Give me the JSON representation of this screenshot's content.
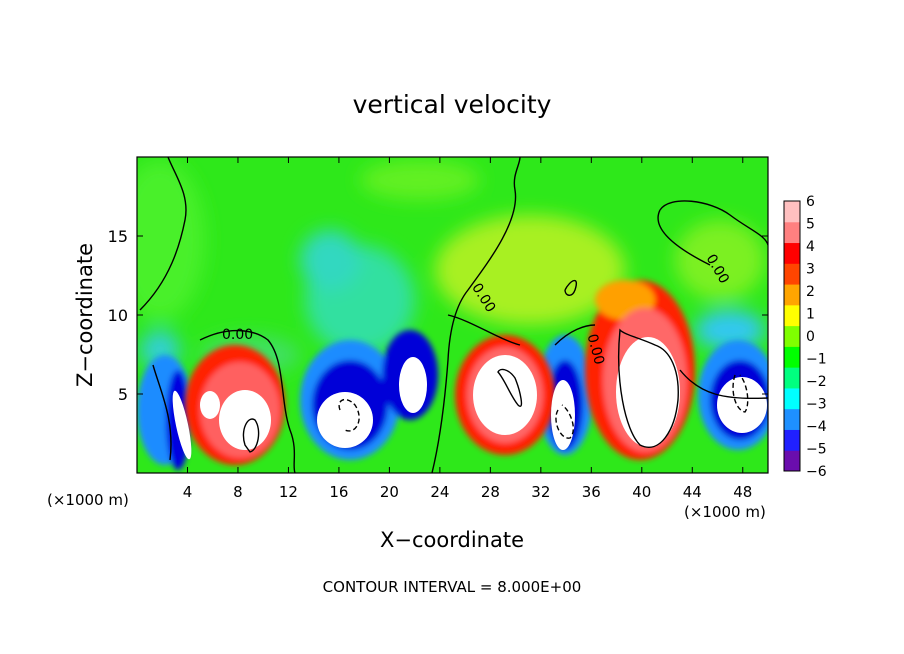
{
  "chart_data": {
    "type": "heatmap",
    "title": "vertical velocity",
    "xlabel": "X−coordinate",
    "ylabel": "Z−coordinate",
    "x_unit_label_left": "(×1000 m)",
    "x_unit_label_right": "(×1000 m)",
    "footer": "CONTOUR INTERVAL = 8.000E+00",
    "xlim": [
      0,
      50
    ],
    "ylim": [
      0,
      20
    ],
    "x_ticks": [
      4,
      8,
      12,
      16,
      20,
      24,
      28,
      32,
      36,
      40,
      44,
      48
    ],
    "x_tick_labels": [
      "4",
      "8",
      "12",
      "16",
      "20",
      "24",
      "28",
      "32",
      "36",
      "40",
      "44",
      "48"
    ],
    "y_ticks": [
      5,
      10,
      15
    ],
    "y_tick_labels": [
      "5",
      "10",
      "15"
    ],
    "colorbar": {
      "range": [
        -6,
        6
      ],
      "ticks": [
        6,
        5,
        4,
        3,
        2,
        1,
        0,
        -1,
        -2,
        -3,
        -4,
        -5,
        -6
      ],
      "tick_labels": [
        "6",
        "5",
        "4",
        "3",
        "2",
        "1",
        "0",
        "−1",
        "−2",
        "−3",
        "−4",
        "−5",
        "−6"
      ],
      "colors": [
        "#6a0dad",
        "#2020ff",
        "#1e90ff",
        "#00ffff",
        "#00ff7f",
        "#00ff00",
        "#7fff00",
        "#ffff00",
        "#ffa500",
        "#ff4500",
        "#ff0000",
        "#ff8080",
        "#ffc0c0"
      ]
    },
    "contour_labels": [
      "0.00",
      "0.00",
      "0.00",
      "0.00"
    ],
    "features": [
      {
        "kind": "updraft",
        "x": 9,
        "z": 3.5,
        "peak": 6
      },
      {
        "kind": "downdraft",
        "x": 4,
        "z": 3,
        "peak": -6
      },
      {
        "kind": "downdraft",
        "x": 17.5,
        "z": 3.5,
        "peak": -6
      },
      {
        "kind": "downdraft",
        "x": 21.5,
        "z": 5.5,
        "peak": -6
      },
      {
        "kind": "updraft",
        "x": 29,
        "z": 4.5,
        "peak": 6
      },
      {
        "kind": "downdraft",
        "x": 33.5,
        "z": 4,
        "peak": -6
      },
      {
        "kind": "updraft",
        "x": 40.5,
        "z": 5,
        "peak": 6
      },
      {
        "kind": "downdraft",
        "x": 47.5,
        "z": 4,
        "peak": -6
      }
    ]
  }
}
